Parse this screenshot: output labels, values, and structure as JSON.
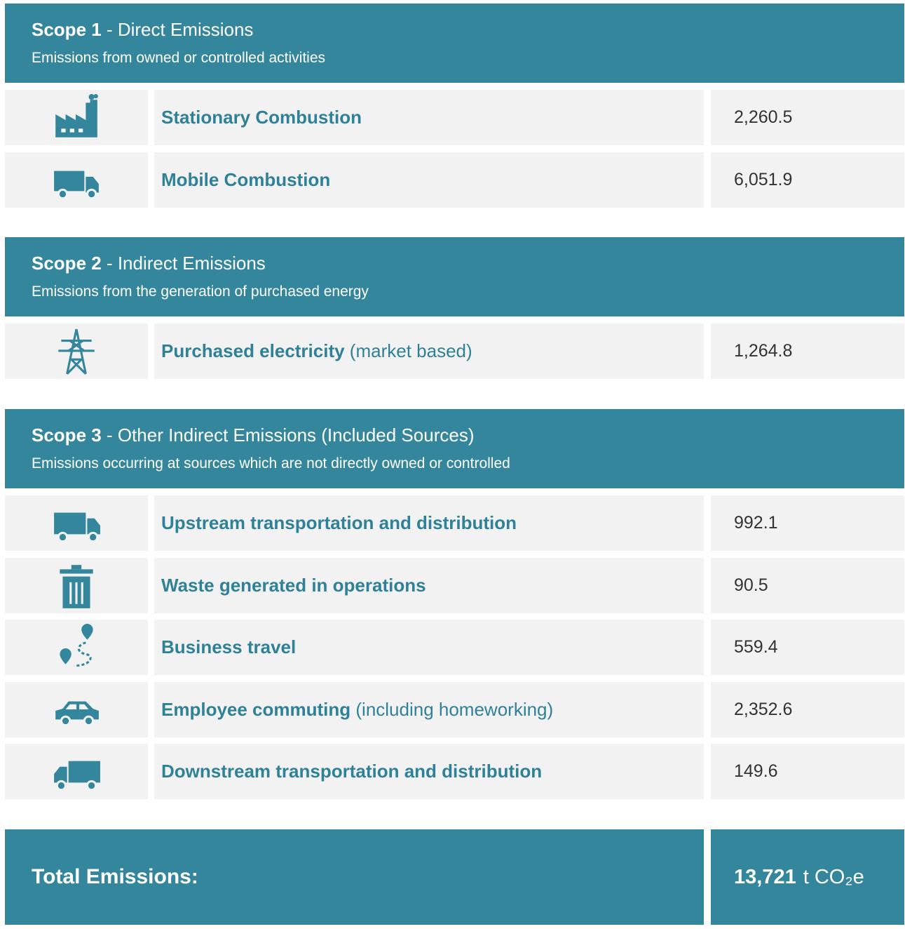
{
  "sections": [
    {
      "title_bold": "Scope 1",
      "title_rest": " - Direct Emissions",
      "subtitle": "Emissions from owned or controlled activities",
      "rows": [
        {
          "label": "Stationary Combustion",
          "value": "2,260.5"
        },
        {
          "label": "Mobile Combustion",
          "value": "6,051.9"
        }
      ]
    },
    {
      "title_bold": "Scope 2",
      "title_rest": " - Indirect Emissions",
      "subtitle": "Emissions from the generation of purchased energy",
      "rows": [
        {
          "label": "Purchased electricity",
          "note": " (market based)",
          "value": "1,264.8"
        }
      ]
    },
    {
      "title_bold": "Scope 3",
      "title_rest": " - Other Indirect Emissions (Included Sources)",
      "subtitle": "Emissions occurring at sources which are not directly owned or controlled",
      "rows": [
        {
          "label": "Upstream transportation and distribution",
          "value": "992.1"
        },
        {
          "label": "Waste generated in operations",
          "value": "90.5"
        },
        {
          "label": "Business travel",
          "value": "559.4"
        },
        {
          "label": "Employee commuting",
          "note": " (including homeworking)",
          "value": "2,352.6"
        },
        {
          "label": "Downstream transportation and distribution",
          "value": "149.6"
        }
      ]
    }
  ],
  "total": {
    "label": "Total Emissions:",
    "value": "13,721",
    "unit": "t CO₂e"
  }
}
